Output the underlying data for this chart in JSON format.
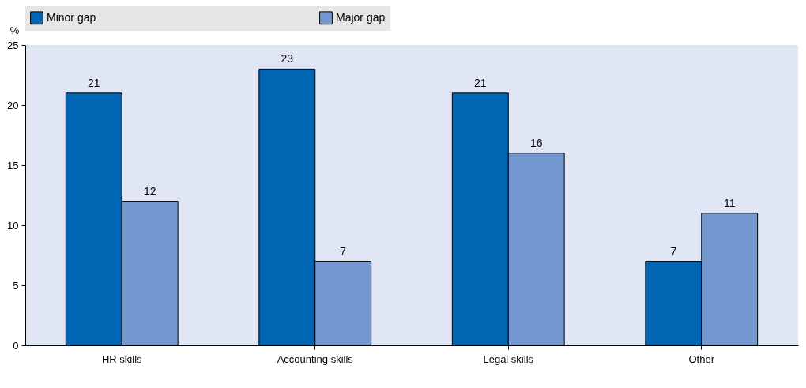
{
  "chart_data": {
    "type": "bar",
    "ylabel": "%",
    "categories": [
      "HR skills",
      "Accounting skills",
      "Legal skills",
      "Other"
    ],
    "series": [
      {
        "name": "Minor gap",
        "color": "#0066b3",
        "values": [
          21,
          23,
          21,
          7
        ]
      },
      {
        "name": "Major gap",
        "color": "#7399d0",
        "values": [
          12,
          7,
          16,
          11
        ]
      }
    ],
    "ylim": [
      0,
      25
    ],
    "yticks": [
      0,
      5,
      10,
      15,
      20,
      25
    ],
    "grid": false,
    "legend": "top",
    "data_labels": true
  }
}
